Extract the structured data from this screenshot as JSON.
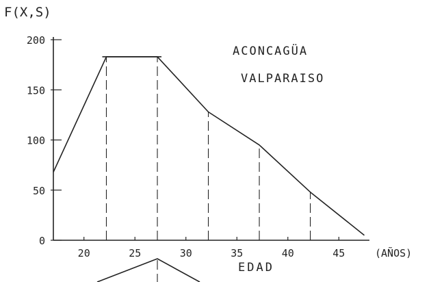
{
  "chart_data": {
    "type": "line",
    "ylabel": "F(X,S)",
    "xlabel": "EDAD",
    "xunit": "(AÑOS)",
    "annotation": [
      "ACONCAGÜA",
      "VALPARAISO"
    ],
    "xlim": [
      17,
      48
    ],
    "ylim": [
      0,
      200
    ],
    "x_ticks": [
      20,
      25,
      30,
      35,
      40,
      45
    ],
    "y_ticks": [
      0,
      50,
      100,
      150,
      200
    ],
    "series": [
      {
        "x": [
          17,
          22.2,
          27.2,
          32.2,
          37.2,
          42.2,
          47.5
        ],
        "y": [
          68,
          183,
          183,
          128,
          95,
          48,
          5
        ]
      }
    ],
    "vertical_dashed_at": [
      22.2,
      27.2,
      32.2,
      37.2,
      42.2
    ],
    "grid": false,
    "legend": "none"
  }
}
